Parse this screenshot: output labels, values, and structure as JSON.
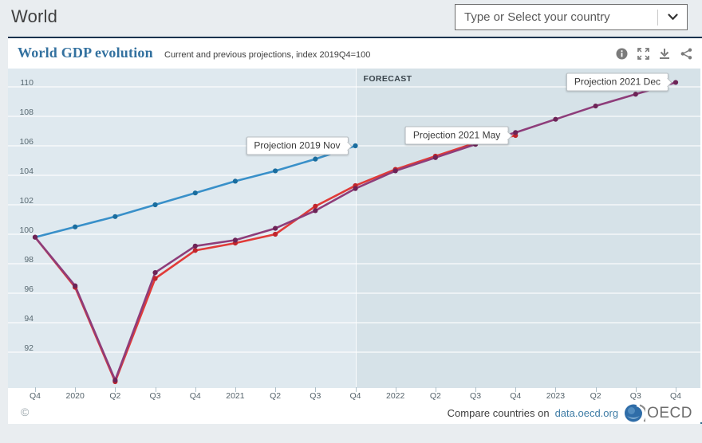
{
  "page": {
    "title": "World"
  },
  "country_selector": {
    "placeholder": "Type or Select your country",
    "caret_icon": "chevron-down-icon"
  },
  "card": {
    "title": "World GDP evolution",
    "subtitle": "Current and previous projections, index 2019Q4=100",
    "toolbar_icons": [
      "info-icon",
      "fullscreen-icon",
      "download-icon",
      "share-icon"
    ]
  },
  "chart_data": {
    "type": "line",
    "title": "World GDP evolution",
    "subtitle": "Current and previous projections, index 2019Q4=100",
    "categories": [
      "Q4",
      "2020",
      "Q2",
      "Q3",
      "Q4",
      "2021",
      "Q2",
      "Q3",
      "Q4",
      "2022",
      "Q2",
      "Q3",
      "Q4",
      "2023",
      "Q2",
      "Q3",
      "Q4"
    ],
    "series": [
      {
        "name": "Projection 2019 Nov",
        "color": "#3990c9",
        "dot_color": "#1a6d9e",
        "values": [
          99.8,
          100.5,
          101.2,
          102.0,
          102.8,
          103.6,
          104.3,
          105.1,
          106.0
        ]
      },
      {
        "name": "Projection 2021 May",
        "color": "#e13b38",
        "dot_color": "#c0252c",
        "values": [
          99.8,
          96.4,
          90.0,
          97.0,
          98.9,
          99.4,
          100.0,
          101.9,
          103.3,
          104.4,
          105.3,
          106.2,
          106.7
        ]
      },
      {
        "name": "Projection 2021 Dec",
        "color": "#8e3d7a",
        "dot_color": "#6d2457",
        "values": [
          99.8,
          96.5,
          90.1,
          97.4,
          99.2,
          99.6,
          100.4,
          101.6,
          103.1,
          104.3,
          105.2,
          106.1,
          106.9,
          107.8,
          108.7,
          109.5,
          110.3
        ]
      }
    ],
    "annotations": [
      {
        "label": "Projection 2019 Nov",
        "series": 0,
        "point": 8
      },
      {
        "label": "Projection 2021 May",
        "series": 1,
        "point": 12
      },
      {
        "label": "Projection 2021 Dec",
        "series": 2,
        "point": 16
      }
    ],
    "yticks": [
      92,
      94,
      96,
      98,
      100,
      102,
      104,
      106,
      108,
      110
    ],
    "ylim": [
      89.5,
      111
    ],
    "forecast_start_category_index": 8,
    "forecast_band_label": "FORECAST",
    "grid": "horizontal white gridlines on light blue background",
    "legend_position": "inline-annotations",
    "background_plain": "#dfe9ef",
    "background_forecast": "#d6e2e8"
  },
  "footer": {
    "copyright": "©",
    "compare_text": "Compare countries on",
    "link_text": "data.oecd.org",
    "logo": {
      "icon": "oecd-globe-icon",
      "text": "OECD"
    }
  }
}
